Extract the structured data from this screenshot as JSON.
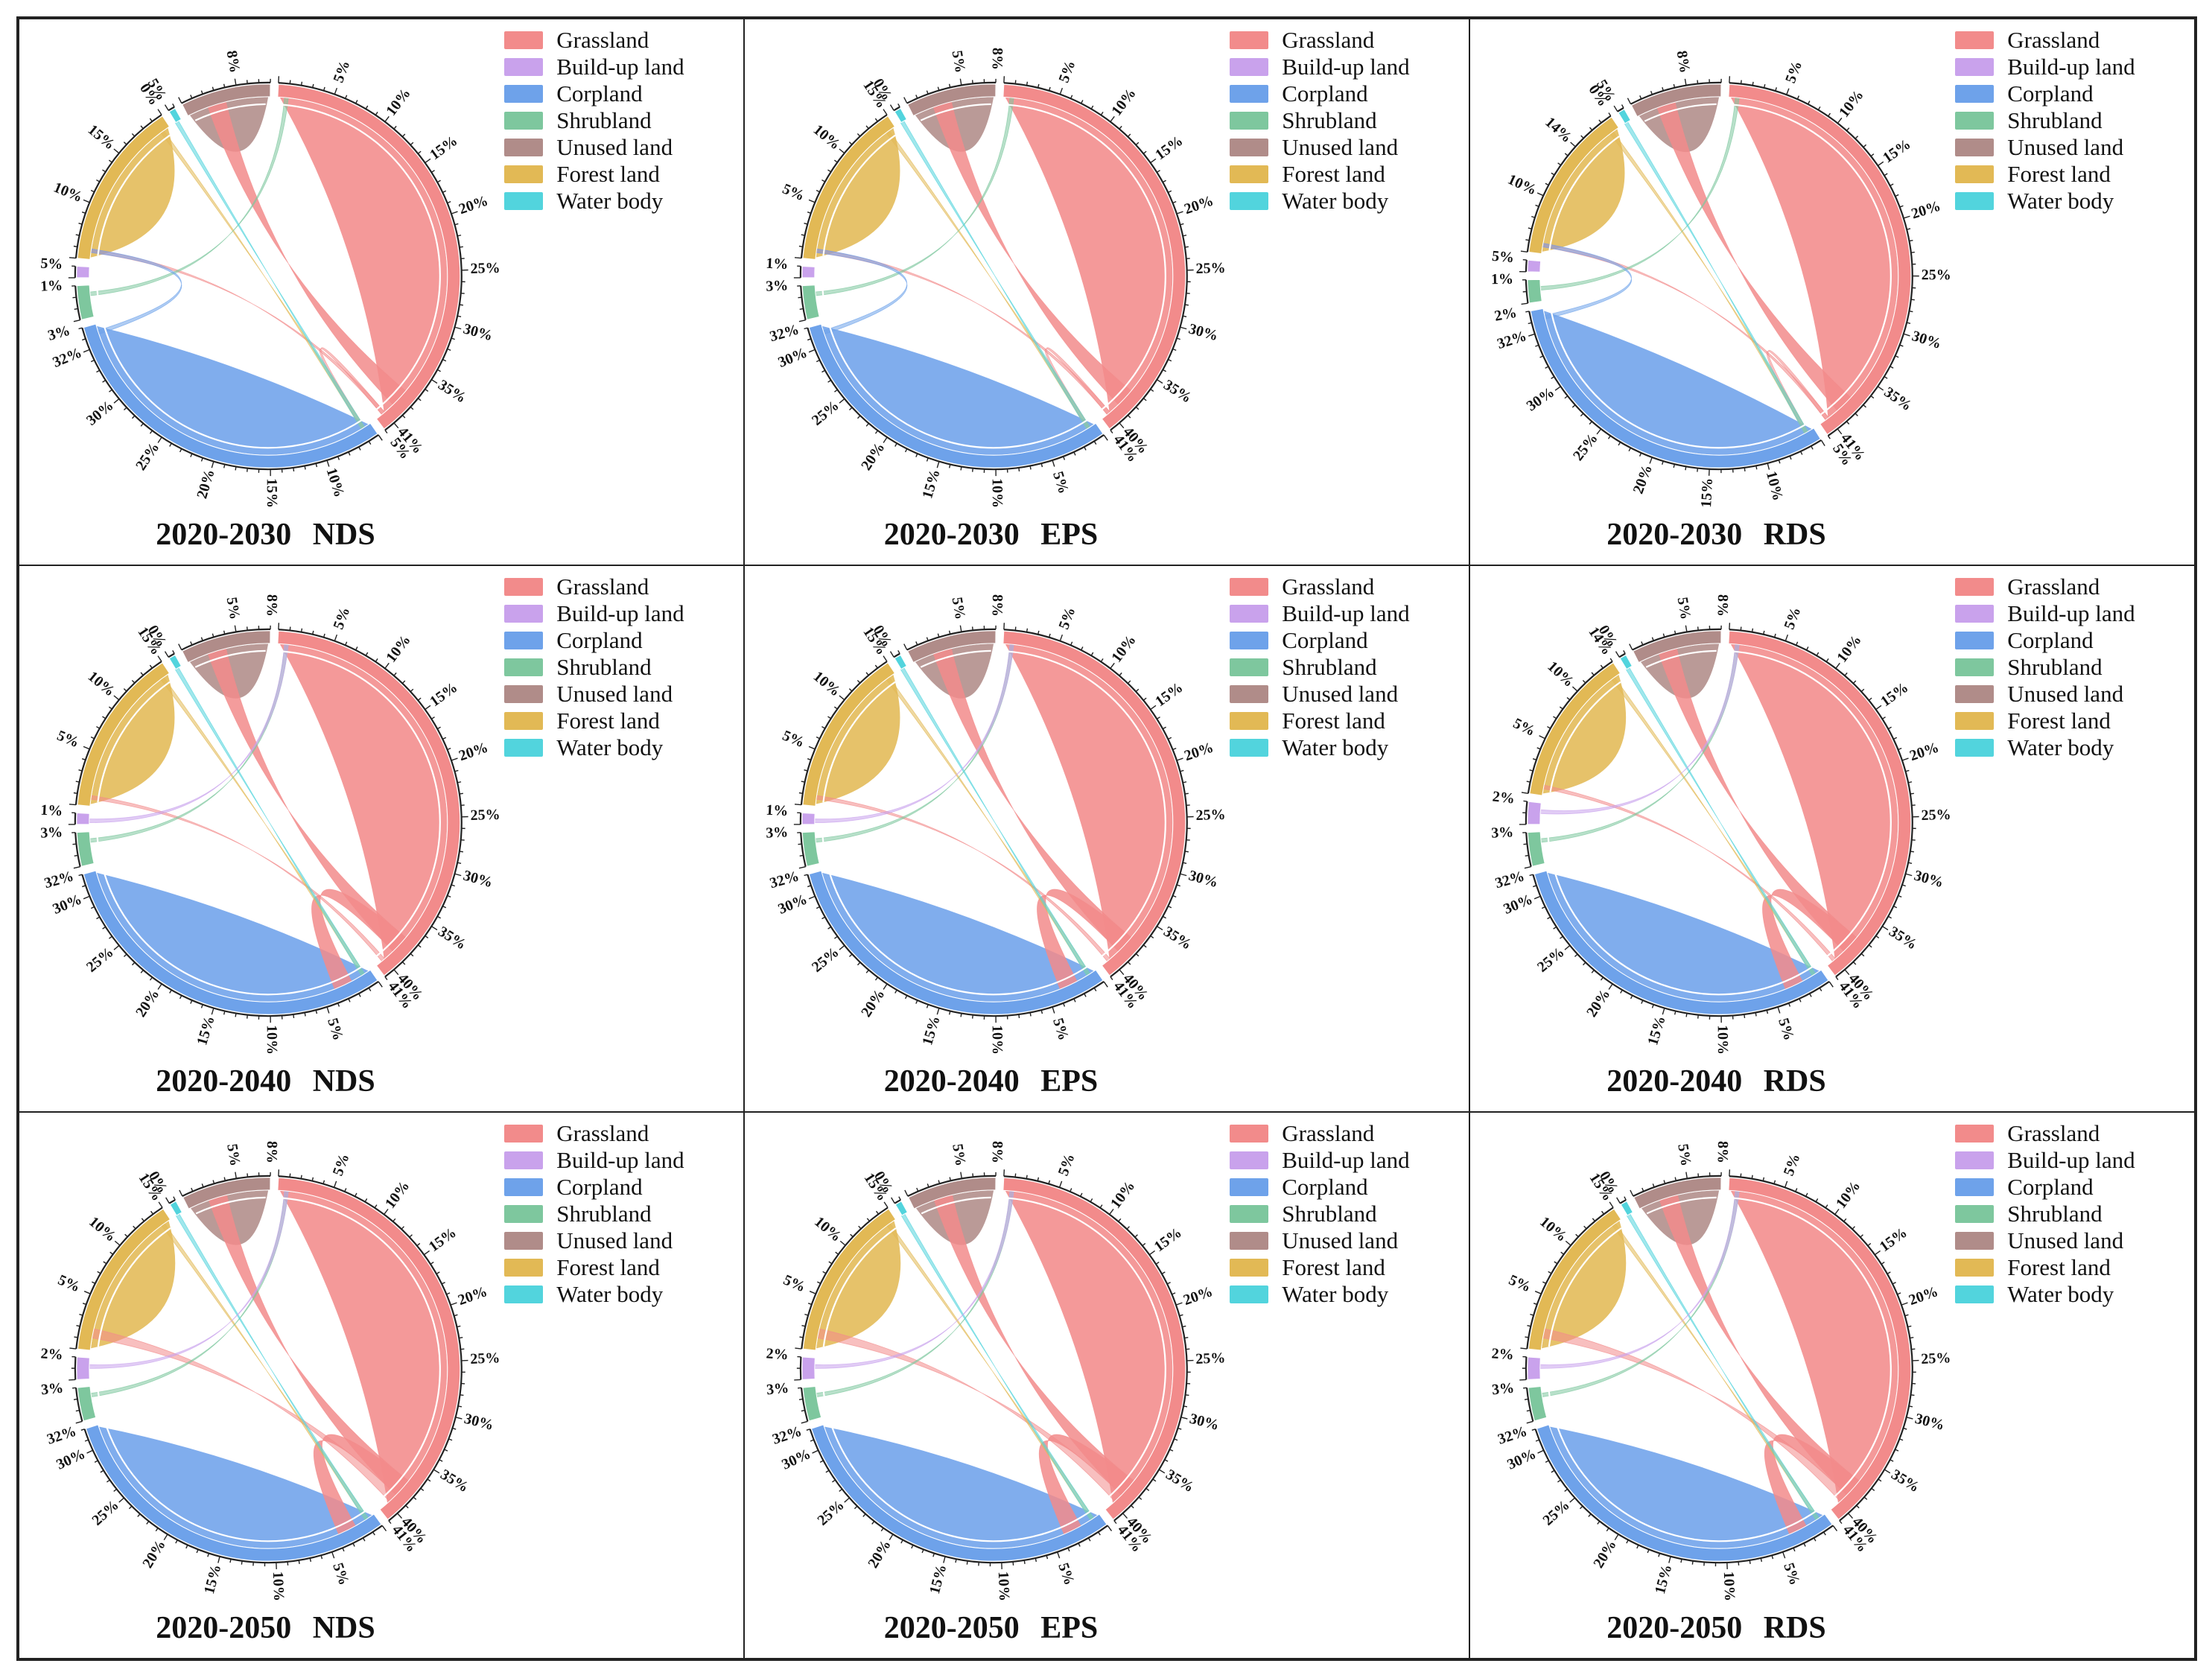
{
  "figure": {
    "categories": [
      "Grassland",
      "Build-up land",
      "Corpland",
      "Shrubland",
      "Unused land",
      "Forest land",
      "Water body"
    ],
    "colors": {
      "Grassland": "#f28b8b",
      "Build-up land": "#c9a2ec",
      "Corpland": "#6ea2ea",
      "Shrubland": "#7ec79e",
      "Unused land": "#b08c89",
      "Forest land": "#e2b955",
      "Water body": "#52d4dd"
    }
  },
  "chart_data": [
    {
      "type": "chord",
      "title": "2020-2030  NDS",
      "categories": [
        "Grassland",
        "Corpland",
        "Shrubland",
        "Build-up land",
        "Forest land",
        "Water body",
        "Unused land"
      ],
      "shares_percent": [
        41,
        32,
        3,
        1,
        15,
        0,
        8
      ],
      "flows": [
        [
          "Grassland",
          "Unused land",
          "thick"
        ],
        [
          "Grassland",
          "Forest land",
          "thin"
        ],
        [
          "Grassland",
          "Corpland",
          "thin"
        ],
        [
          "Forest land",
          "Corpland",
          "thin"
        ],
        [
          "Shrubland",
          "Grassland",
          "thin"
        ],
        [
          "Water body",
          "Corpland",
          "thin"
        ],
        [
          "Corpland",
          "Forest land",
          "thin"
        ]
      ],
      "tick_labels": [
        "5%",
        "10%",
        "15%",
        "20%",
        "25%",
        "30%",
        "35%",
        "41%",
        "5%",
        "10%",
        "15%",
        "20%",
        "25%",
        "30%",
        "32%",
        "3%",
        "1%",
        "5%",
        "10%",
        "15%",
        "0%",
        "5%",
        "8%"
      ]
    },
    {
      "type": "chord",
      "title": "2020-2030  EPS",
      "categories": [
        "Grassland",
        "Corpland",
        "Shrubland",
        "Build-up land",
        "Forest land",
        "Water body",
        "Unused land"
      ],
      "shares_percent": [
        41,
        32,
        3,
        1,
        15,
        0,
        8
      ],
      "flows": [
        [
          "Grassland",
          "Unused land",
          "thick"
        ],
        [
          "Grassland",
          "Forest land",
          "thin"
        ],
        [
          "Grassland",
          "Corpland",
          "thin"
        ],
        [
          "Forest land",
          "Corpland",
          "thin"
        ],
        [
          "Shrubland",
          "Grassland",
          "thin"
        ],
        [
          "Water body",
          "Corpland",
          "thin"
        ],
        [
          "Corpland",
          "Forest land",
          "thin"
        ]
      ],
      "tick_labels": [
        "5%",
        "10%",
        "15%",
        "20%",
        "25%",
        "30%",
        "35%",
        "40%",
        "41%",
        "5%",
        "10%",
        "15%",
        "20%",
        "25%",
        "30%",
        "32%",
        "3%",
        "1%",
        "5%",
        "10%",
        "15%",
        "0%",
        "5%",
        "8%"
      ]
    },
    {
      "type": "chord",
      "title": "2020-2030  RDS",
      "categories": [
        "Grassland",
        "Corpland",
        "Shrubland",
        "Build-up land",
        "Forest land",
        "Water body",
        "Unused land"
      ],
      "shares_percent": [
        41,
        32,
        2,
        1,
        14,
        0,
        8
      ],
      "flows": [
        [
          "Grassland",
          "Unused land",
          "thick"
        ],
        [
          "Grassland",
          "Forest land",
          "thin"
        ],
        [
          "Grassland",
          "Corpland",
          "thin"
        ],
        [
          "Forest land",
          "Corpland",
          "thin"
        ],
        [
          "Shrubland",
          "Grassland",
          "thin"
        ],
        [
          "Water body",
          "Corpland",
          "thin"
        ],
        [
          "Corpland",
          "Forest land",
          "thin"
        ]
      ],
      "tick_labels": [
        "5%",
        "10%",
        "15%",
        "20%",
        "25%",
        "30%",
        "35%",
        "41%",
        "5%",
        "10%",
        "15%",
        "20%",
        "25%",
        "30%",
        "32%",
        "2%",
        "1%",
        "5%",
        "10%",
        "14%",
        "0%",
        "5%",
        "8%"
      ]
    },
    {
      "type": "chord",
      "title": "2020-2040  NDS",
      "categories": [
        "Grassland",
        "Corpland",
        "Shrubland",
        "Build-up land",
        "Forest land",
        "Water body",
        "Unused land"
      ],
      "shares_percent": [
        41,
        32,
        3,
        1,
        15,
        0,
        8
      ],
      "flows": [
        [
          "Grassland",
          "Unused land",
          "thick"
        ],
        [
          "Grassland",
          "Corpland",
          "thick"
        ],
        [
          "Grassland",
          "Forest land",
          "thin"
        ],
        [
          "Forest land",
          "Corpland",
          "thin"
        ],
        [
          "Shrubland",
          "Grassland",
          "thin"
        ],
        [
          "Water body",
          "Corpland",
          "thin"
        ],
        [
          "Build-up land",
          "Grassland",
          "thin"
        ]
      ],
      "tick_labels": [
        "5%",
        "10%",
        "15%",
        "20%",
        "25%",
        "30%",
        "35%",
        "40%",
        "41%",
        "5%",
        "10%",
        "15%",
        "20%",
        "25%",
        "30%",
        "32%",
        "3%",
        "1%",
        "5%",
        "10%",
        "15%",
        "0%",
        "5%",
        "8%"
      ]
    },
    {
      "type": "chord",
      "title": "2020-2040  EPS",
      "categories": [
        "Grassland",
        "Corpland",
        "Shrubland",
        "Build-up land",
        "Forest land",
        "Water body",
        "Unused land"
      ],
      "shares_percent": [
        41,
        32,
        3,
        1,
        15,
        0,
        8
      ],
      "flows": [
        [
          "Grassland",
          "Unused land",
          "thick"
        ],
        [
          "Grassland",
          "Corpland",
          "thick"
        ],
        [
          "Grassland",
          "Forest land",
          "thin"
        ],
        [
          "Forest land",
          "Corpland",
          "thin"
        ],
        [
          "Shrubland",
          "Grassland",
          "thin"
        ],
        [
          "Water body",
          "Corpland",
          "thin"
        ],
        [
          "Build-up land",
          "Grassland",
          "thin"
        ]
      ],
      "tick_labels": [
        "5%",
        "10%",
        "15%",
        "20%",
        "25%",
        "30%",
        "35%",
        "40%",
        "41%",
        "5%",
        "10%",
        "15%",
        "20%",
        "25%",
        "30%",
        "32%",
        "3%",
        "1%",
        "5%",
        "10%",
        "15%",
        "0%",
        "5%",
        "8%"
      ]
    },
    {
      "type": "chord",
      "title": "2020-2040  RDS",
      "categories": [
        "Grassland",
        "Corpland",
        "Shrubland",
        "Build-up land",
        "Forest land",
        "Water body",
        "Unused land"
      ],
      "shares_percent": [
        41,
        32,
        3,
        2,
        14,
        0,
        8
      ],
      "flows": [
        [
          "Grassland",
          "Unused land",
          "thick"
        ],
        [
          "Grassland",
          "Corpland",
          "thick"
        ],
        [
          "Grassland",
          "Forest land",
          "thin"
        ],
        [
          "Forest land",
          "Corpland",
          "thin"
        ],
        [
          "Shrubland",
          "Grassland",
          "thin"
        ],
        [
          "Water body",
          "Corpland",
          "thin"
        ],
        [
          "Build-up land",
          "Grassland",
          "thin"
        ]
      ],
      "tick_labels": [
        "5%",
        "10%",
        "15%",
        "20%",
        "25%",
        "30%",
        "35%",
        "40%",
        "41%",
        "5%",
        "10%",
        "15%",
        "20%",
        "25%",
        "30%",
        "32%",
        "3%",
        "2%",
        "5%",
        "10%",
        "14%",
        "0%",
        "5%",
        "8%"
      ]
    },
    {
      "type": "chord",
      "title": "2020-2050  NDS",
      "categories": [
        "Grassland",
        "Corpland",
        "Shrubland",
        "Build-up land",
        "Forest land",
        "Water body",
        "Unused land"
      ],
      "shares_percent": [
        41,
        32,
        3,
        2,
        15,
        0,
        8
      ],
      "flows": [
        [
          "Grassland",
          "Unused land",
          "thick"
        ],
        [
          "Grassland",
          "Corpland",
          "thick"
        ],
        [
          "Grassland",
          "Forest land",
          "medium"
        ],
        [
          "Forest land",
          "Corpland",
          "thin"
        ],
        [
          "Shrubland",
          "Grassland",
          "thin"
        ],
        [
          "Water body",
          "Corpland",
          "thin"
        ],
        [
          "Build-up land",
          "Grassland",
          "thin"
        ]
      ],
      "tick_labels": [
        "5%",
        "10%",
        "15%",
        "20%",
        "25%",
        "30%",
        "35%",
        "40%",
        "41%",
        "5%",
        "10%",
        "15%",
        "20%",
        "25%",
        "30%",
        "32%",
        "3%",
        "2%",
        "5%",
        "10%",
        "15%",
        "0%",
        "5%",
        "8%"
      ]
    },
    {
      "type": "chord",
      "title": "2020-2050  EPS",
      "categories": [
        "Grassland",
        "Corpland",
        "Shrubland",
        "Build-up land",
        "Forest land",
        "Water body",
        "Unused land"
      ],
      "shares_percent": [
        41,
        32,
        3,
        2,
        15,
        0,
        8
      ],
      "flows": [
        [
          "Grassland",
          "Unused land",
          "thick"
        ],
        [
          "Grassland",
          "Corpland",
          "thick"
        ],
        [
          "Grassland",
          "Forest land",
          "medium"
        ],
        [
          "Forest land",
          "Corpland",
          "thin"
        ],
        [
          "Shrubland",
          "Grassland",
          "thin"
        ],
        [
          "Water body",
          "Corpland",
          "thin"
        ],
        [
          "Build-up land",
          "Grassland",
          "thin"
        ]
      ],
      "tick_labels": [
        "5%",
        "10%",
        "15%",
        "20%",
        "25%",
        "30%",
        "35%",
        "40%",
        "41%",
        "5%",
        "10%",
        "15%",
        "20%",
        "25%",
        "30%",
        "32%",
        "3%",
        "2%",
        "5%",
        "10%",
        "15%",
        "0%",
        "5%",
        "8%"
      ]
    },
    {
      "type": "chord",
      "title": "2020-2050  RDS",
      "categories": [
        "Grassland",
        "Corpland",
        "Shrubland",
        "Build-up land",
        "Forest land",
        "Water body",
        "Unused land"
      ],
      "shares_percent": [
        41,
        32,
        3,
        2,
        15,
        0,
        8
      ],
      "flows": [
        [
          "Grassland",
          "Unused land",
          "thick"
        ],
        [
          "Grassland",
          "Corpland",
          "thick"
        ],
        [
          "Grassland",
          "Forest land",
          "medium"
        ],
        [
          "Forest land",
          "Corpland",
          "thin"
        ],
        [
          "Shrubland",
          "Grassland",
          "thin"
        ],
        [
          "Water body",
          "Corpland",
          "thin"
        ],
        [
          "Build-up land",
          "Grassland",
          "thin"
        ]
      ],
      "tick_labels": [
        "5%",
        "10%",
        "15%",
        "20%",
        "25%",
        "30%",
        "35%",
        "40%",
        "41%",
        "5%",
        "10%",
        "15%",
        "20%",
        "25%",
        "30%",
        "32%",
        "3%",
        "2%",
        "5%",
        "10%",
        "15%",
        "0%",
        "5%",
        "8%"
      ]
    }
  ]
}
